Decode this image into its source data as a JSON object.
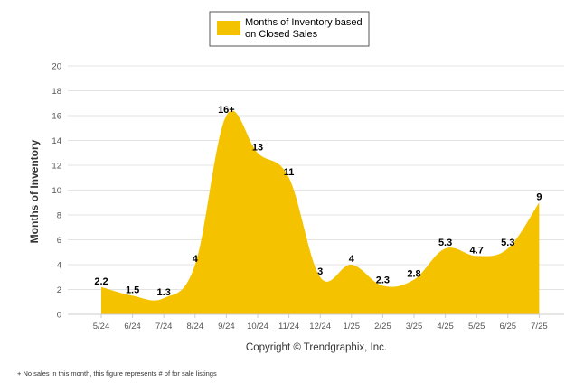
{
  "chart_data": {
    "type": "area",
    "title": "",
    "xlabel": "",
    "ylabel": "Months of Inventory",
    "categories": [
      "5/24",
      "6/24",
      "7/24",
      "8/24",
      "9/24",
      "10/24",
      "11/24",
      "12/24",
      "1/25",
      "2/25",
      "3/25",
      "4/25",
      "5/25",
      "6/25",
      "7/25"
    ],
    "series": [
      {
        "name": "Months of Inventory based on Closed Sales",
        "values": [
          2.2,
          1.5,
          1.3,
          4,
          16,
          13,
          11,
          3,
          4,
          2.3,
          2.8,
          5.3,
          4.7,
          5.3,
          9
        ],
        "labels": [
          "2.2",
          "1.5",
          "1.3",
          "4",
          "16+",
          "13",
          "11",
          "3",
          "4",
          "2.3",
          "2.8",
          "5.3",
          "4.7",
          "5.3",
          "9"
        ],
        "color": "#f5c200"
      }
    ],
    "ylim": [
      0,
      20
    ],
    "yticks": [
      "0",
      "2",
      "4",
      "6",
      "8",
      "10",
      "12",
      "14",
      "16",
      "18",
      "20"
    ],
    "ytick_values": [
      0,
      2,
      4,
      6,
      8,
      10,
      12,
      14,
      16,
      18,
      20
    ],
    "grid": true,
    "legend_placement": "top-center"
  },
  "legend": {
    "line1": "Months of Inventory based",
    "line2": "on Closed Sales"
  },
  "copyright": "Copyright © Trendgraphix, Inc.",
  "footnote": "+  No sales in this month, this figure represents # of for sale listings"
}
